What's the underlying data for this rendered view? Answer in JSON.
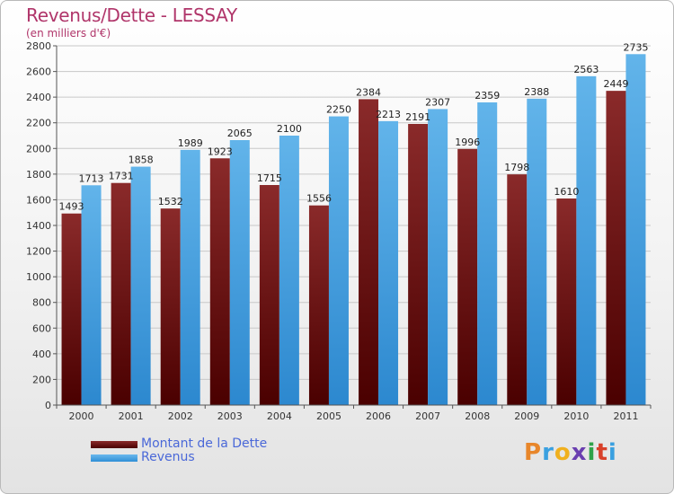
{
  "header": {
    "title": "Revenus/Dette - LESSAY",
    "subtitle": "(en milliers d'€)"
  },
  "legend": {
    "debt_label": "Montant de la Dette",
    "revenue_label": "Revenus"
  },
  "logo": {
    "text": "Proxiti",
    "letters": [
      "P",
      "r",
      "o",
      "x",
      "i",
      "t",
      "i"
    ]
  },
  "colors": {
    "debt": "#6e1414",
    "revenue": "#45a3e6",
    "title": "#b0356a",
    "legend_text": "#4a68d8"
  },
  "chart_data": {
    "type": "bar",
    "title": "Revenus/Dette - LESSAY",
    "ylabel": "(en milliers d'€)",
    "ylim": [
      0,
      2800
    ],
    "yticks": [
      0,
      200,
      400,
      600,
      800,
      1000,
      1200,
      1400,
      1600,
      1800,
      2000,
      2200,
      2400,
      2600,
      2800
    ],
    "grid": true,
    "legend_position": "bottom-left",
    "categories": [
      "2000",
      "2001",
      "2002",
      "2003",
      "2004",
      "2005",
      "2006",
      "2007",
      "2008",
      "2009",
      "2010",
      "2011"
    ],
    "series": [
      {
        "name": "Montant de la Dette",
        "values": [
          1493,
          1731,
          1532,
          1923,
          1715,
          1556,
          2384,
          2191,
          1996,
          1798,
          1610,
          2449
        ],
        "labels": [
          "1493",
          "1731",
          "1532",
          "1923",
          "1715",
          "1556",
          "2384",
          "2191",
          "1996",
          "1798",
          "1610",
          "2449"
        ]
      },
      {
        "name": "Revenus",
        "values": [
          1713,
          1858,
          1989,
          2065,
          2100,
          2250,
          2213,
          2307,
          2359,
          2388,
          2563,
          2735
        ],
        "labels": [
          "1713",
          "1858",
          "1989",
          "2065",
          "2100",
          "2250",
          "2213",
          "2307",
          "2359",
          "2388",
          "2563",
          "2735"
        ]
      }
    ]
  }
}
